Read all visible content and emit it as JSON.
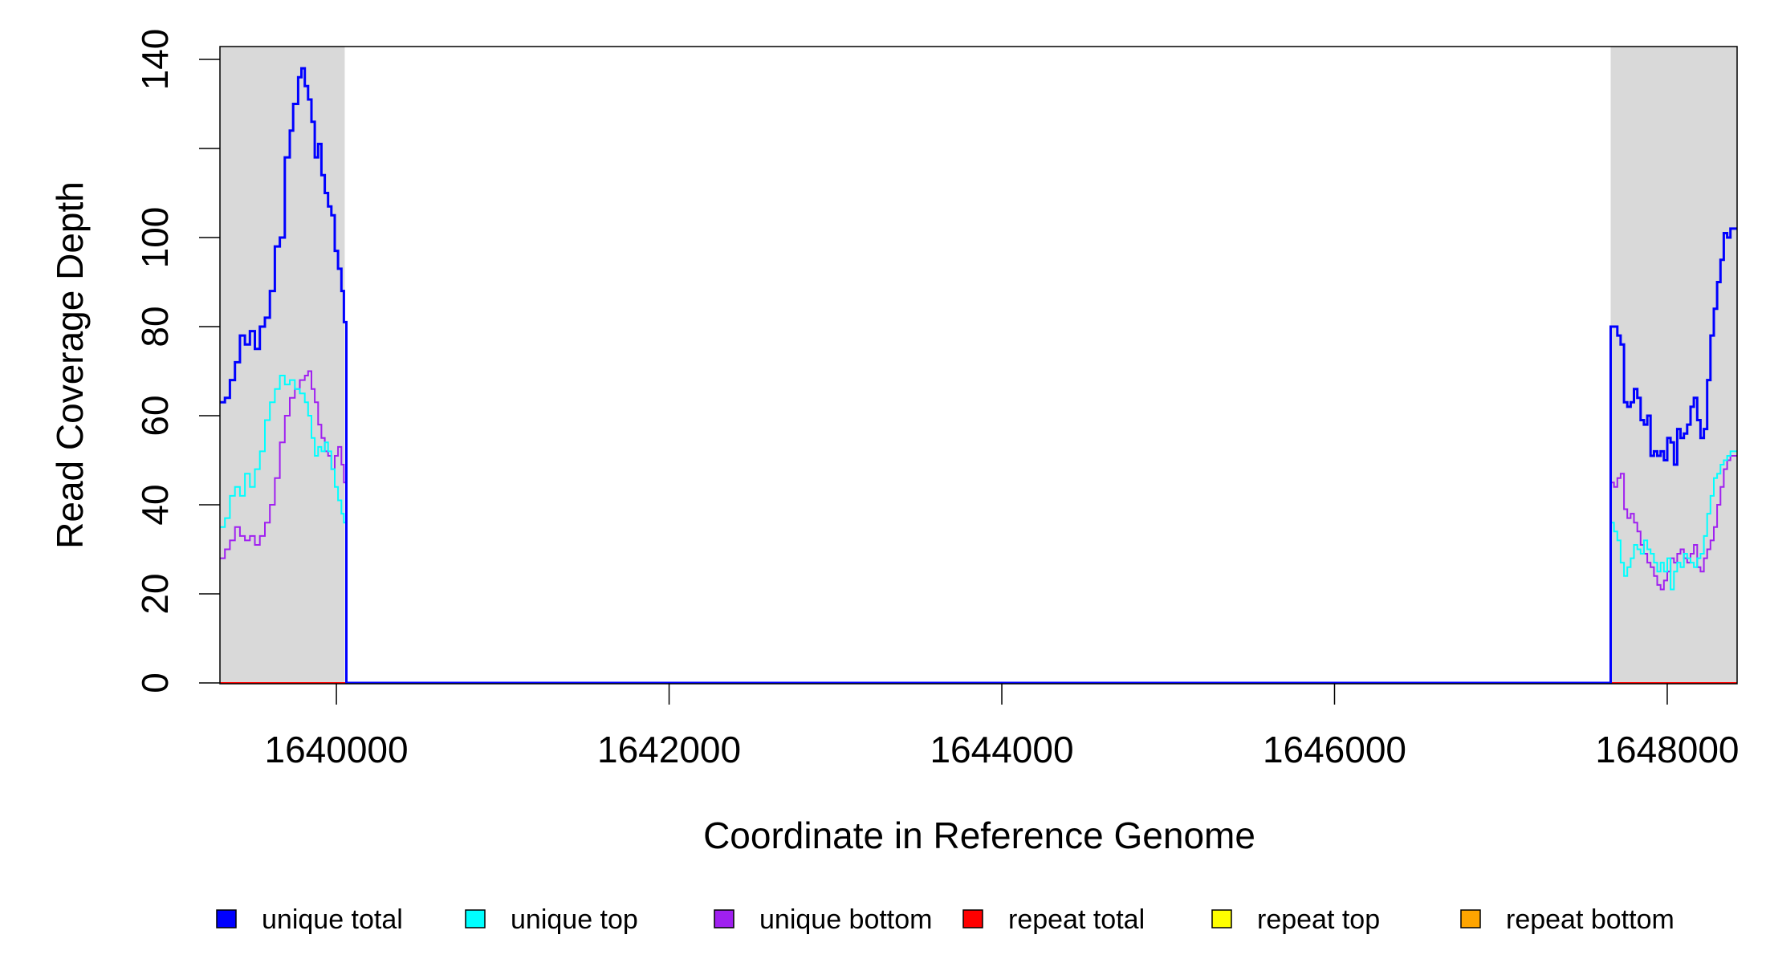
{
  "chart_data": {
    "type": "line",
    "title": "",
    "xlabel": "Coordinate in Reference Genome",
    "ylabel": "Read Coverage Depth",
    "xlim": [
      1639300,
      1648420
    ],
    "ylim": [
      0,
      143
    ],
    "x_ticks": [
      1640000,
      1642000,
      1644000,
      1646000,
      1648000
    ],
    "x_tick_labels": [
      "1640000",
      "1642000",
      "1644000",
      "1646000",
      "1648000"
    ],
    "y_ticks": [
      0,
      20,
      40,
      60,
      80,
      100,
      120,
      140
    ],
    "y_tick_labels": [
      "0",
      "20",
      "40",
      "60",
      "80",
      "100",
      "",
      "140"
    ],
    "shaded_regions": [
      {
        "x0": 1639300,
        "x1": 1640050,
        "color": "#d9d9d9"
      },
      {
        "x0": 1647660,
        "x1": 1648420,
        "color": "#d9d9d9"
      }
    ],
    "legend_placement": "bottom",
    "series": [
      {
        "name": "unique total",
        "color": "#0000ff",
        "width": 3,
        "points": [
          [
            1639300,
            63
          ],
          [
            1639330,
            64
          ],
          [
            1639360,
            68
          ],
          [
            1639390,
            72
          ],
          [
            1639420,
            78
          ],
          [
            1639450,
            76
          ],
          [
            1639480,
            79
          ],
          [
            1639510,
            75
          ],
          [
            1639540,
            80
          ],
          [
            1639570,
            82
          ],
          [
            1639600,
            88
          ],
          [
            1639630,
            98
          ],
          [
            1639660,
            100
          ],
          [
            1639690,
            118
          ],
          [
            1639720,
            124
          ],
          [
            1639740,
            130
          ],
          [
            1639770,
            136
          ],
          [
            1639790,
            138
          ],
          [
            1639810,
            134
          ],
          [
            1639830,
            131
          ],
          [
            1639850,
            126
          ],
          [
            1639870,
            118
          ],
          [
            1639890,
            121
          ],
          [
            1639910,
            114
          ],
          [
            1639930,
            110
          ],
          [
            1639950,
            107
          ],
          [
            1639970,
            105
          ],
          [
            1639990,
            97
          ],
          [
            1640010,
            93
          ],
          [
            1640030,
            88
          ],
          [
            1640045,
            81
          ],
          [
            1640060,
            0
          ],
          [
            1647660,
            80
          ],
          [
            1647680,
            80
          ],
          [
            1647700,
            78
          ],
          [
            1647720,
            76
          ],
          [
            1647740,
            63
          ],
          [
            1647760,
            62
          ],
          [
            1647780,
            63
          ],
          [
            1647800,
            66
          ],
          [
            1647820,
            64
          ],
          [
            1647840,
            59
          ],
          [
            1647860,
            58
          ],
          [
            1647880,
            60
          ],
          [
            1647900,
            51
          ],
          [
            1647920,
            52
          ],
          [
            1647940,
            51
          ],
          [
            1647960,
            52
          ],
          [
            1647980,
            50
          ],
          [
            1648000,
            55
          ],
          [
            1648020,
            54
          ],
          [
            1648040,
            49
          ],
          [
            1648060,
            57
          ],
          [
            1648080,
            55
          ],
          [
            1648100,
            56
          ],
          [
            1648120,
            58
          ],
          [
            1648140,
            62
          ],
          [
            1648160,
            64
          ],
          [
            1648180,
            59
          ],
          [
            1648200,
            55
          ],
          [
            1648220,
            57
          ],
          [
            1648240,
            68
          ],
          [
            1648260,
            78
          ],
          [
            1648280,
            84
          ],
          [
            1648300,
            90
          ],
          [
            1648320,
            95
          ],
          [
            1648340,
            101
          ],
          [
            1648360,
            100
          ],
          [
            1648380,
            102
          ],
          [
            1648420,
            102
          ]
        ]
      },
      {
        "name": "unique top",
        "color": "#00ffff",
        "width": 2,
        "points": [
          [
            1639300,
            35
          ],
          [
            1639330,
            37
          ],
          [
            1639360,
            42
          ],
          [
            1639390,
            44
          ],
          [
            1639420,
            42
          ],
          [
            1639450,
            47
          ],
          [
            1639480,
            44
          ],
          [
            1639510,
            48
          ],
          [
            1639540,
            52
          ],
          [
            1639570,
            59
          ],
          [
            1639600,
            63
          ],
          [
            1639630,
            66
          ],
          [
            1639660,
            69
          ],
          [
            1639690,
            67
          ],
          [
            1639720,
            68
          ],
          [
            1639750,
            66
          ],
          [
            1639780,
            65
          ],
          [
            1639810,
            63
          ],
          [
            1639830,
            60
          ],
          [
            1639850,
            55
          ],
          [
            1639870,
            51
          ],
          [
            1639890,
            53
          ],
          [
            1639910,
            52
          ],
          [
            1639930,
            54
          ],
          [
            1639950,
            52
          ],
          [
            1639970,
            48
          ],
          [
            1639990,
            44
          ],
          [
            1640010,
            41
          ],
          [
            1640030,
            38
          ],
          [
            1640045,
            36
          ],
          [
            1640060,
            0
          ],
          [
            1647660,
            36
          ],
          [
            1647680,
            34
          ],
          [
            1647700,
            32
          ],
          [
            1647720,
            27
          ],
          [
            1647740,
            24
          ],
          [
            1647760,
            26
          ],
          [
            1647780,
            28
          ],
          [
            1647800,
            31
          ],
          [
            1647820,
            30
          ],
          [
            1647840,
            29
          ],
          [
            1647860,
            32
          ],
          [
            1647880,
            30
          ],
          [
            1647900,
            29
          ],
          [
            1647920,
            27
          ],
          [
            1647940,
            25
          ],
          [
            1647960,
            27
          ],
          [
            1647980,
            25
          ],
          [
            1648000,
            28
          ],
          [
            1648020,
            21
          ],
          [
            1648040,
            25
          ],
          [
            1648060,
            27
          ],
          [
            1648080,
            26
          ],
          [
            1648100,
            29
          ],
          [
            1648120,
            28
          ],
          [
            1648140,
            27
          ],
          [
            1648160,
            26
          ],
          [
            1648180,
            28
          ],
          [
            1648200,
            29
          ],
          [
            1648220,
            33
          ],
          [
            1648240,
            38
          ],
          [
            1648260,
            42
          ],
          [
            1648280,
            46
          ],
          [
            1648300,
            47
          ],
          [
            1648320,
            49
          ],
          [
            1648340,
            50
          ],
          [
            1648360,
            51
          ],
          [
            1648380,
            52
          ],
          [
            1648420,
            52
          ]
        ]
      },
      {
        "name": "unique bottom",
        "color": "#a020f0",
        "width": 2,
        "points": [
          [
            1639300,
            28
          ],
          [
            1639330,
            30
          ],
          [
            1639360,
            32
          ],
          [
            1639390,
            35
          ],
          [
            1639420,
            33
          ],
          [
            1639450,
            32
          ],
          [
            1639480,
            33
          ],
          [
            1639510,
            31
          ],
          [
            1639540,
            33
          ],
          [
            1639570,
            36
          ],
          [
            1639600,
            40
          ],
          [
            1639630,
            46
          ],
          [
            1639660,
            54
          ],
          [
            1639690,
            60
          ],
          [
            1639720,
            64
          ],
          [
            1639750,
            66
          ],
          [
            1639780,
            68
          ],
          [
            1639810,
            69
          ],
          [
            1639830,
            70
          ],
          [
            1639850,
            66
          ],
          [
            1639870,
            63
          ],
          [
            1639890,
            58
          ],
          [
            1639910,
            55
          ],
          [
            1639930,
            52
          ],
          [
            1639950,
            51
          ],
          [
            1639970,
            48
          ],
          [
            1639990,
            51
          ],
          [
            1640010,
            53
          ],
          [
            1640030,
            49
          ],
          [
            1640045,
            45
          ],
          [
            1640060,
            0
          ],
          [
            1647660,
            45
          ],
          [
            1647680,
            44
          ],
          [
            1647700,
            46
          ],
          [
            1647720,
            47
          ],
          [
            1647740,
            39
          ],
          [
            1647760,
            37
          ],
          [
            1647780,
            38
          ],
          [
            1647800,
            36
          ],
          [
            1647820,
            34
          ],
          [
            1647840,
            31
          ],
          [
            1647860,
            29
          ],
          [
            1647880,
            27
          ],
          [
            1647900,
            26
          ],
          [
            1647920,
            24
          ],
          [
            1647940,
            22
          ],
          [
            1647960,
            21
          ],
          [
            1647980,
            23
          ],
          [
            1648000,
            25
          ],
          [
            1648020,
            28
          ],
          [
            1648040,
            27
          ],
          [
            1648060,
            29
          ],
          [
            1648080,
            30
          ],
          [
            1648100,
            28
          ],
          [
            1648120,
            27
          ],
          [
            1648140,
            29
          ],
          [
            1648160,
            31
          ],
          [
            1648180,
            26
          ],
          [
            1648200,
            25
          ],
          [
            1648220,
            28
          ],
          [
            1648240,
            30
          ],
          [
            1648260,
            32
          ],
          [
            1648280,
            35
          ],
          [
            1648300,
            40
          ],
          [
            1648320,
            44
          ],
          [
            1648340,
            48
          ],
          [
            1648360,
            50
          ],
          [
            1648380,
            51
          ],
          [
            1648420,
            51
          ]
        ]
      },
      {
        "name": "repeat total",
        "color": "#ff0000",
        "width": 2,
        "points": [
          [
            1639300,
            0
          ],
          [
            1648420,
            0
          ]
        ]
      },
      {
        "name": "repeat top",
        "color": "#ffff00",
        "width": 2,
        "points": [
          [
            1639300,
            0
          ],
          [
            1648420,
            0
          ]
        ]
      },
      {
        "name": "repeat bottom",
        "color": "#ffa500",
        "width": 2,
        "points": [
          [
            1639300,
            0
          ],
          [
            1648420,
            0
          ]
        ]
      }
    ]
  }
}
